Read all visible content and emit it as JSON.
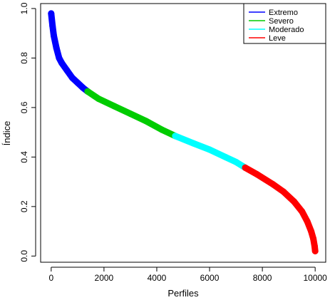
{
  "chart_data": {
    "type": "scatter",
    "xlabel": "Perfiles",
    "ylabel": "Índice",
    "xlim": [
      -400,
      10400
    ],
    "ylim": [
      -0.025,
      1.02
    ],
    "xticks": [
      0,
      2000,
      4000,
      6000,
      8000,
      10000
    ],
    "yticks": [
      0.0,
      0.2,
      0.4,
      0.6,
      0.8,
      1.0
    ],
    "xtick_labels": [
      "0",
      "2000",
      "4000",
      "6000",
      "8000",
      "10000"
    ],
    "ytick_labels": [
      "0.0",
      "0.2",
      "0.4",
      "0.6",
      "0.8",
      "1.0"
    ],
    "legend_position": "top-right",
    "grid": false,
    "series": [
      {
        "name": "Extremo",
        "color": "#0000ff",
        "x": [
          0,
          50,
          100,
          200,
          300,
          400,
          600,
          800,
          1000,
          1200,
          1380
        ],
        "y": [
          0.98,
          0.93,
          0.89,
          0.84,
          0.8,
          0.78,
          0.75,
          0.72,
          0.7,
          0.68,
          0.665
        ]
      },
      {
        "name": "Severo",
        "color": "#00cc00",
        "x": [
          1380,
          1800,
          2400,
          3000,
          3600,
          4200,
          4700
        ],
        "y": [
          0.665,
          0.635,
          0.605,
          0.575,
          0.545,
          0.51,
          0.485
        ]
      },
      {
        "name": "Moderado",
        "color": "#00ffff",
        "x": [
          4700,
          5400,
          6000,
          6600,
          7000,
          7350
        ],
        "y": [
          0.485,
          0.455,
          0.43,
          0.4,
          0.38,
          0.357
        ]
      },
      {
        "name": "Leve",
        "color": "#ff0000",
        "x": [
          7350,
          7800,
          8400,
          8800,
          9200,
          9500,
          9700,
          9850,
          9930,
          9980,
          10000
        ],
        "y": [
          0.357,
          0.33,
          0.29,
          0.26,
          0.22,
          0.18,
          0.14,
          0.1,
          0.07,
          0.04,
          0.02
        ]
      }
    ]
  }
}
